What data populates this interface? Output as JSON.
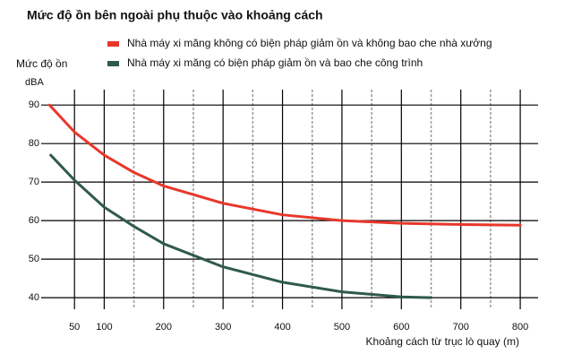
{
  "chart_data": {
    "type": "line",
    "title": "Mức độ ồn bên ngoài phụ thuộc vào khoảng cách",
    "ylabel": "Mức độ ồn",
    "yunit": "dBA",
    "xlabel": "Khoảng cách từ trục lò quay (m)",
    "xlim": [
      0,
      830
    ],
    "ylim": [
      37,
      94
    ],
    "xticks": [
      50,
      100,
      200,
      300,
      400,
      500,
      600,
      700,
      800
    ],
    "xminor": [
      150,
      250,
      350,
      450,
      550,
      650,
      750
    ],
    "yticks": [
      40,
      50,
      60,
      70,
      80,
      90
    ],
    "grid": true,
    "series": [
      {
        "name": "Nhà máy xi măng không có biện pháp giảm ồn và không bao che nhà xưởng",
        "color": "#e8372a",
        "x": [
          8,
          50,
          100,
          150,
          200,
          300,
          400,
          500,
          600,
          700,
          800
        ],
        "values": [
          90,
          83,
          77,
          72.5,
          69,
          64.5,
          61.5,
          60,
          59.3,
          59,
          58.8
        ]
      },
      {
        "name": "Nhà máy xi măng có biện pháp giảm ồn và bao che công trình",
        "color": "#2f5a4c",
        "x": [
          10,
          50,
          100,
          150,
          200,
          300,
          400,
          500,
          600,
          650
        ],
        "values": [
          77,
          70.5,
          63.5,
          58.5,
          54,
          48,
          44,
          41.5,
          40.2,
          40
        ]
      }
    ]
  }
}
